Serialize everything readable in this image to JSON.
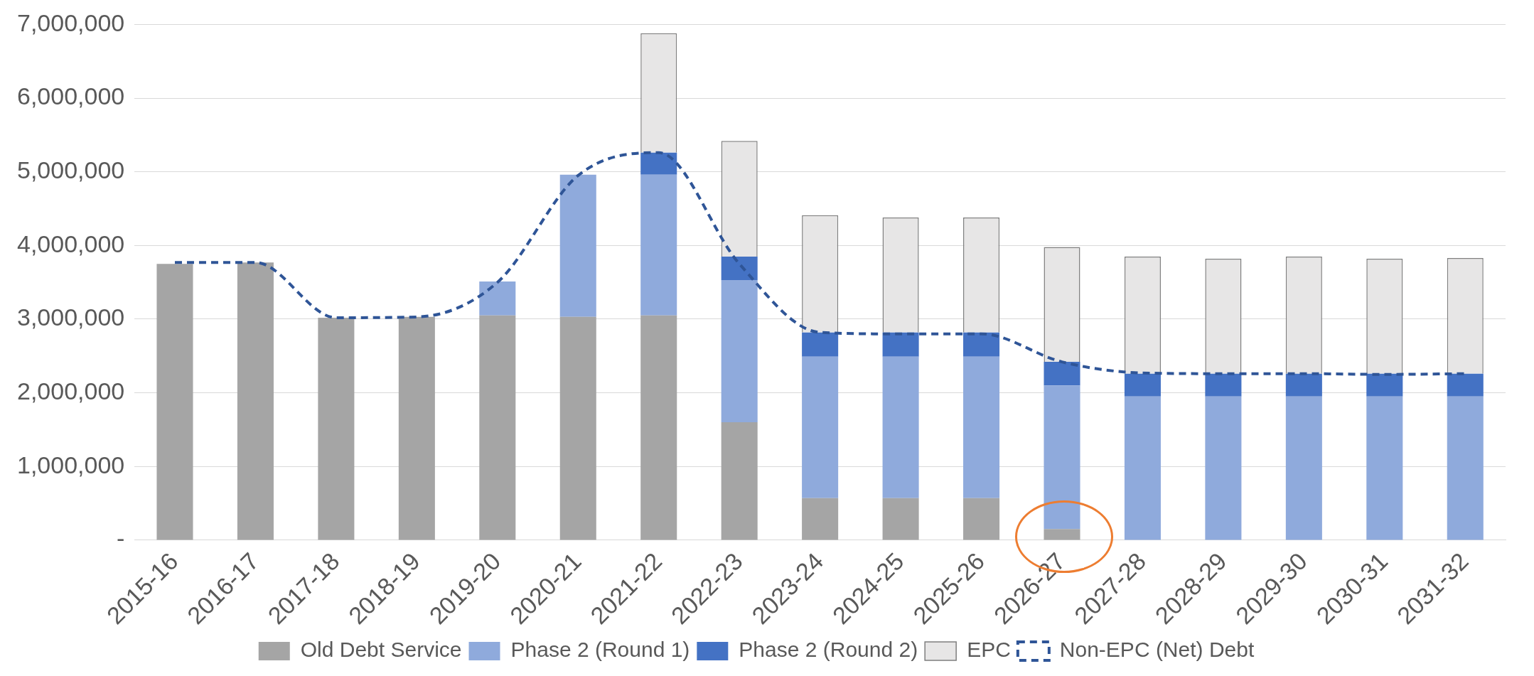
{
  "chart_data": {
    "type": "bar",
    "stacked": true,
    "categories": [
      "2015-16",
      "2016-17",
      "2017-18",
      "2018-19",
      "2019-20",
      "2020-21",
      "2021-22",
      "2022-23",
      "2023-24",
      "2024-25",
      "2025-26",
      "2026-27",
      "2027-28",
      "2028-29",
      "2029-30",
      "2030-31",
      "2031-32"
    ],
    "series": [
      {
        "name": "Old Debt Service",
        "color": "#a5a5a5",
        "values": [
          3750000,
          3770000,
          3020000,
          3030000,
          3050000,
          3030000,
          3050000,
          1600000,
          570000,
          570000,
          570000,
          150000,
          0,
          0,
          0,
          0,
          0
        ]
      },
      {
        "name": "Phase 2 (Round 1)",
        "color": "#8faadc",
        "values": [
          0,
          0,
          0,
          0,
          460000,
          1930000,
          1910000,
          1930000,
          1920000,
          1920000,
          1920000,
          1950000,
          1950000,
          1950000,
          1950000,
          1950000,
          1950000
        ]
      },
      {
        "name": "Phase 2 (Round 2)",
        "color": "#4472c4",
        "values": [
          0,
          0,
          0,
          0,
          0,
          0,
          300000,
          320000,
          330000,
          330000,
          330000,
          320000,
          310000,
          310000,
          310000,
          310000,
          310000
        ]
      },
      {
        "name": "EPC",
        "color": "#e7e6e6",
        "values": [
          0,
          0,
          0,
          0,
          0,
          0,
          1620000,
          1570000,
          1590000,
          1560000,
          1560000,
          1560000,
          1590000,
          1560000,
          1590000,
          1560000,
          1570000
        ]
      },
      {
        "name": "Non-EPC (Net) Debt",
        "type": "line",
        "line_style": "dashed",
        "color": "#2f5597",
        "values": [
          3770000,
          3770000,
          3020000,
          3030000,
          3500000,
          4950000,
          5260000,
          3750000,
          2820000,
          2800000,
          2800000,
          2420000,
          2270000,
          2260000,
          2260000,
          2250000,
          2260000
        ]
      }
    ],
    "ylim": [
      0,
      7000000
    ],
    "yticks": [
      {
        "value": 0,
        "label": "-"
      },
      {
        "value": 1000000,
        "label": "1,000,000"
      },
      {
        "value": 2000000,
        "label": "2,000,000"
      },
      {
        "value": 3000000,
        "label": "3,000,000"
      },
      {
        "value": 4000000,
        "label": "4,000,000"
      },
      {
        "value": 5000000,
        "label": "5,000,000"
      },
      {
        "value": 6000000,
        "label": "6,000,000"
      },
      {
        "value": 7000000,
        "label": "7,000,000"
      }
    ],
    "grid": "y",
    "legend": "bottom",
    "marker": "none"
  }
}
